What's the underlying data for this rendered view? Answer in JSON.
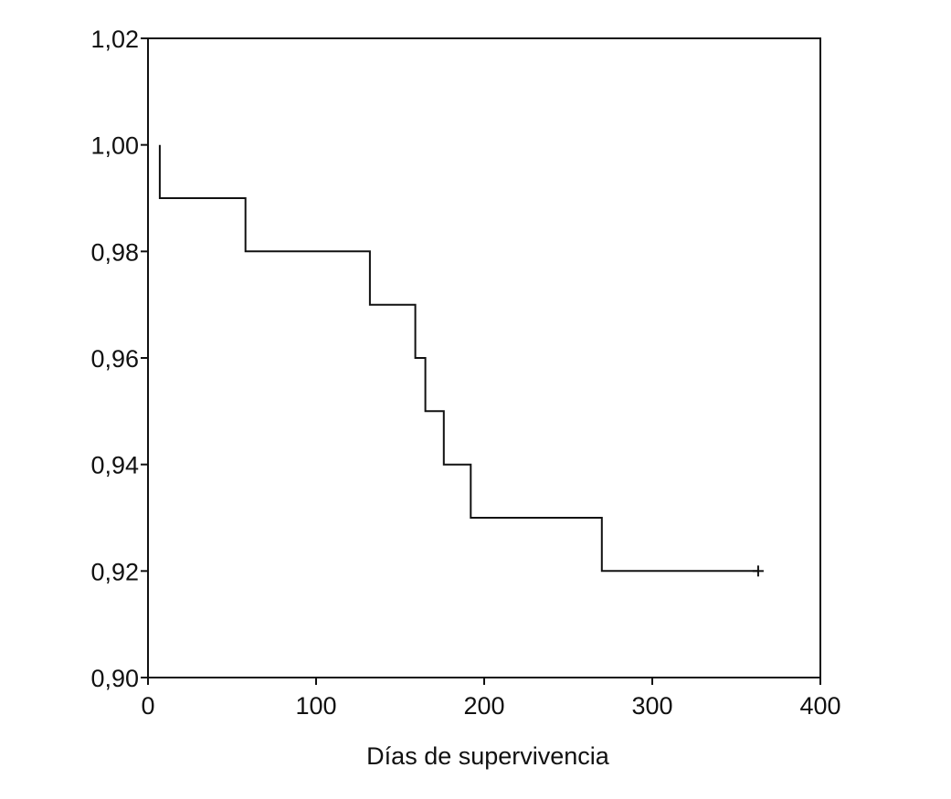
{
  "chart_data": {
    "type": "line",
    "step": true,
    "title": "",
    "xlabel": "Días de supervivencia",
    "ylabel": "",
    "xlim": [
      0,
      400
    ],
    "ylim": [
      0.9,
      1.02
    ],
    "xticks": [
      0,
      100,
      200,
      300,
      400
    ],
    "xtick_labels": [
      "0",
      "100",
      "200",
      "300",
      "400"
    ],
    "yticks": [
      0.9,
      0.92,
      0.94,
      0.96,
      0.98,
      1.0,
      1.02
    ],
    "ytick_labels": [
      "0,90",
      "0,92",
      "0,94",
      "0,96",
      "0,98",
      "1,00",
      "1,02"
    ],
    "grid": false,
    "legend": "none",
    "series": [
      {
        "x": [
          7,
          7,
          58,
          58,
          132,
          132,
          159,
          159,
          165,
          165,
          176,
          176,
          192,
          192,
          270,
          270,
          363
        ],
        "y": [
          1.0,
          0.99,
          0.99,
          0.98,
          0.98,
          0.97,
          0.97,
          0.96,
          0.96,
          0.95,
          0.95,
          0.94,
          0.94,
          0.93,
          0.93,
          0.92,
          0.92
        ],
        "censored": [
          {
            "x": 363,
            "y": 0.92
          }
        ]
      }
    ],
    "line_color": "#111111"
  }
}
